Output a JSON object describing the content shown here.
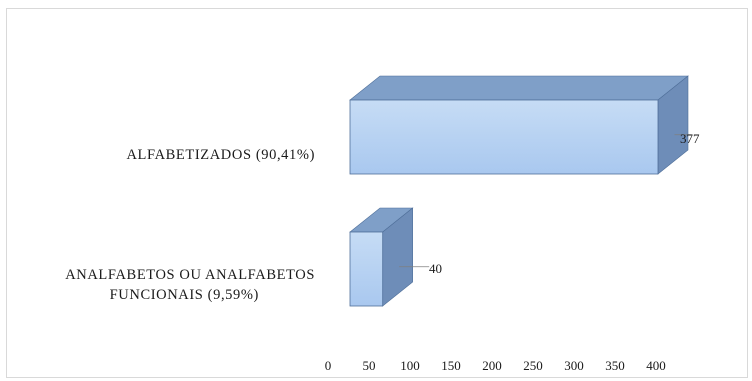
{
  "chart_data": {
    "type": "bar",
    "orientation": "horizontal",
    "style": "3d",
    "categories": [
      "ALFABETIZADOS (90,41%)",
      "ANALFABETOS OU ANALFABETOS FUNCIONAIS (9,59%)"
    ],
    "category_lines": [
      [
        "ALFABETIZADOS (90,41%)"
      ],
      [
        "ANALFABETOS OU ANALFABETOS",
        "FUNCIONAIS (9,59%)"
      ]
    ],
    "values": [
      377,
      40
    ],
    "data_labels": [
      "377",
      "40"
    ],
    "xlim": [
      0,
      400
    ],
    "xticks": [
      "0",
      "50",
      "100",
      "150",
      "200",
      "250",
      "300",
      "350",
      "400"
    ],
    "grid": false,
    "legend": "none",
    "colors": {
      "front_top": "#c6dcf5",
      "front_bottom": "#a9c8ef",
      "top_face": "#7f9fc8",
      "side_face": "#6e8db8",
      "edge": "#4f6f99"
    }
  }
}
